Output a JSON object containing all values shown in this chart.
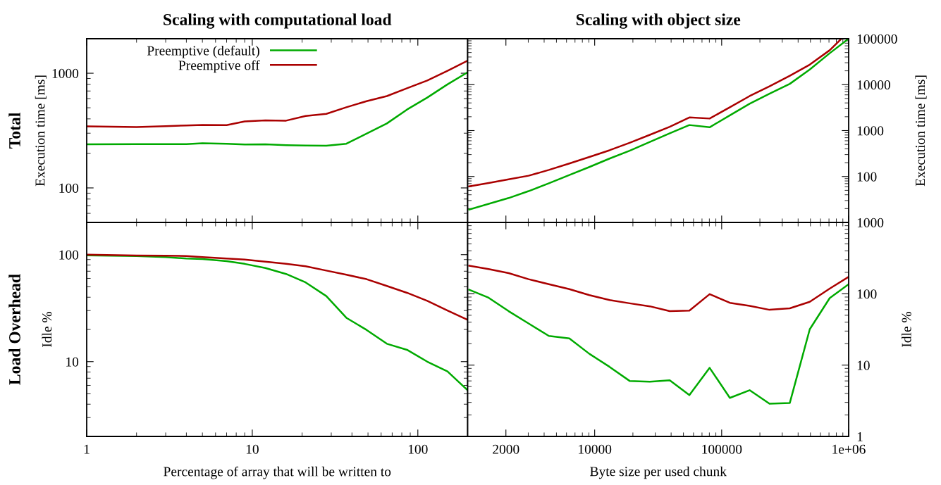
{
  "chart_data": [
    {
      "type": "line",
      "title": "Scaling with computational load",
      "ylabel": "Execution time [ms]",
      "annotations": [
        "Total"
      ],
      "log": "xy",
      "xlim": [
        1,
        200
      ],
      "xticks": [
        1,
        10,
        100
      ],
      "ylim": [
        50,
        2000
      ],
      "yticks": [
        100,
        1000
      ],
      "tick_labels": "y",
      "legend": "top",
      "grid": false,
      "series": [
        {
          "name": "Preemptive (default)",
          "color": "#00aa00",
          "x": [
            1,
            2,
            3,
            4,
            5,
            7,
            9,
            12,
            16,
            21,
            28,
            37,
            65,
            86,
            114,
            151,
            200
          ],
          "values": [
            240,
            241,
            241,
            241,
            245,
            243,
            239,
            240,
            236,
            234,
            233,
            243,
            365,
            482,
            613,
            800,
            1019
          ]
        },
        {
          "name": "Preemptive off",
          "color": "#aa0000",
          "x": [
            1,
            2,
            3,
            4,
            5,
            7,
            9,
            12,
            16,
            21,
            28,
            37,
            49,
            65,
            86,
            114,
            151,
            200
          ],
          "values": [
            344,
            339,
            346,
            350,
            354,
            353,
            380,
            388,
            386,
            424,
            442,
            505,
            570,
            632,
            740,
            864,
            1050,
            1287
          ]
        }
      ]
    },
    {
      "type": "line",
      "title": "Scaling with object size",
      "ylabel": "Execution time [ms]",
      "log": "xy",
      "xlim": [
        1000,
        1000000
      ],
      "xticks": [
        2000,
        10000,
        100000,
        1000000
      ],
      "ylim": [
        10,
        100000
      ],
      "yticks": [
        {
          "value": 10,
          "label": null
        },
        100,
        1000,
        10000,
        100000
      ],
      "tick_labels": "y",
      "grid": false,
      "series": [
        {
          "color": "#00aa00",
          "x": [
            1028,
            2103,
            3015,
            4360,
            6320,
            9080,
            13100,
            18850,
            27200,
            39000,
            55700,
            80400,
            116000,
            166000,
            238000,
            344000,
            494000,
            709000,
            1000000
          ],
          "values": [
            19,
            34,
            48,
            71,
            108,
            161,
            246,
            364,
            565,
            875,
            1320,
            1180,
            2150,
            3840,
            6330,
            10400,
            21300,
            48300,
            100000
          ]
        },
        {
          "color": "#aa0000",
          "x": [
            1028,
            1461,
            2103,
            3015,
            4360,
            6320,
            9080,
            13100,
            18850,
            27200,
            39000,
            55700,
            80400,
            116000,
            166000,
            238000,
            344000,
            494000,
            709000,
            877000
          ],
          "values": [
            61,
            72,
            87,
            104,
            139,
            192,
            266,
            373,
            543,
            809,
            1210,
            1930,
            1830,
            3220,
            5640,
            9200,
            15600,
            27300,
            56100,
            100000
          ]
        }
      ]
    },
    {
      "type": "line",
      "xlabel": "Percentage of array that will be written to",
      "ylabel": "Idle %",
      "annotations": [
        "Load Overhead"
      ],
      "log": "xy",
      "xlim": [
        1,
        200
      ],
      "xticks": [
        1,
        10,
        100
      ],
      "ylim": [
        2,
        200
      ],
      "yticks": [
        10,
        100
      ],
      "grid": false,
      "series": [
        {
          "color": "#00aa00",
          "x": [
            1,
            2,
            3,
            4,
            5,
            7,
            9,
            12,
            16,
            21,
            28,
            37,
            49,
            65,
            86,
            114,
            151,
            200
          ],
          "values": [
            98.5,
            97,
            95,
            92,
            91,
            87,
            82,
            75,
            66,
            55,
            41,
            25.7,
            19.8,
            14.7,
            12.9,
            10,
            8.1,
            5.4
          ]
        },
        {
          "color": "#aa0000",
          "x": [
            1,
            2,
            3,
            4,
            5,
            7,
            9,
            12,
            16,
            21,
            28,
            37,
            49,
            65,
            86,
            114,
            151,
            200
          ],
          "values": [
            100,
            98,
            97.8,
            97,
            95,
            92,
            90,
            86,
            82,
            78,
            71,
            65,
            59,
            51,
            44,
            37,
            30,
            24.6
          ]
        }
      ]
    },
    {
      "type": "line",
      "xlabel": "Byte size per used chunk",
      "ylabel": "Idle %",
      "log": "xy",
      "xlim": [
        1000,
        1000000
      ],
      "xticks": [
        2000,
        10000,
        100000,
        {
          "value": 1000000,
          "label": "1e+06"
        }
      ],
      "ylim": [
        1,
        1000
      ],
      "yticks": [
        1,
        10,
        100,
        1000
      ],
      "grid": false,
      "series": [
        {
          "color": "#00aa00",
          "x": [
            1028,
            1461,
            2103,
            3015,
            4360,
            6320,
            9080,
            13100,
            18850,
            27200,
            39000,
            55700,
            80400,
            116000,
            166000,
            238000,
            344000,
            494000,
            709000,
            1000000
          ],
          "values": [
            114,
            88,
            57,
            38.4,
            25.6,
            23.7,
            14.4,
            9.45,
            6.0,
            5.85,
            6.14,
            3.79,
            9.15,
            3.47,
            4.45,
            2.88,
            2.95,
            31.8,
            87,
            136
          ]
        },
        {
          "color": "#aa0000",
          "x": [
            1028,
            1461,
            2103,
            3015,
            4360,
            6320,
            9080,
            13100,
            18850,
            27200,
            39000,
            55700,
            80400,
            116000,
            166000,
            238000,
            344000,
            494000,
            709000,
            1000000
          ],
          "values": [
            247,
            222,
            195,
            160,
            136,
            116,
            95.6,
            81.6,
            73.5,
            66.7,
            57.0,
            58.1,
            98.8,
            74.7,
            67.7,
            59.6,
            62.6,
            77.2,
            118,
            173
          ]
        }
      ]
    }
  ]
}
